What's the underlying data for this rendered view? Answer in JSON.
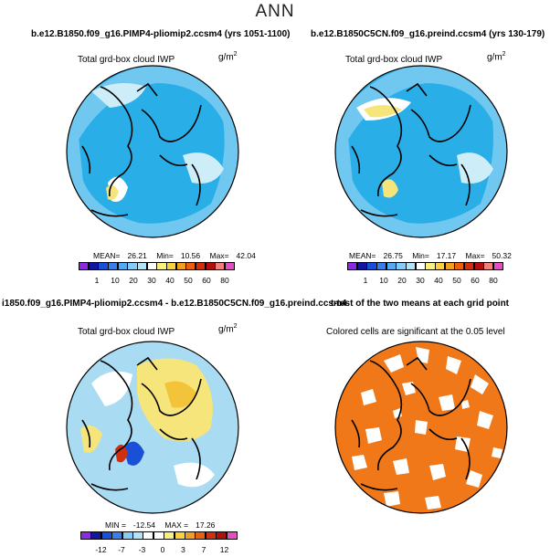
{
  "title": "ANN",
  "panels": [
    {
      "id": "p1",
      "title": "b.e12.B1850.f09_g16.PIMP4-pliomip2.ccsm4 (yrs 1051-1100)",
      "subtitle": "Total grd-box cloud IWP",
      "units": "g/m",
      "units_sup": "2",
      "stats": {
        "mean_label": "MEAN=",
        "mean": "26.21",
        "min_label": "Min=",
        "min": "10.56",
        "max_label": "Max=",
        "max": "42.04"
      },
      "colorbar": {
        "labels": [
          "1",
          "10",
          "20",
          "30",
          "40",
          "50",
          "60",
          "80"
        ],
        "colors": [
          "#8a2be2",
          "#1515a0",
          "#1a4fd8",
          "#3a7ee8",
          "#55aaf0",
          "#85cdf8",
          "#b0e4f8",
          "#ffffff",
          "#f8f080",
          "#f8d040",
          "#f0a020",
          "#e86010",
          "#d03010",
          "#b01010",
          "#f08080",
          "#e050c0"
        ]
      },
      "map_fill": "#29aee8",
      "map_accents": [
        "#8fd3f3",
        "#cdeef8",
        "#ffffff",
        "#f6e57a"
      ]
    },
    {
      "id": "p2",
      "title": "b.e12.B1850C5CN.f09_g16.preind.ccsm4 (yrs 130-179)",
      "subtitle": "Total grd-box cloud IWP",
      "units": "g/m",
      "units_sup": "2",
      "stats": {
        "mean_label": "MEAN=",
        "mean": "26.75",
        "min_label": "Min=",
        "min": "17.17",
        "max_label": "Max=",
        "max": "50.32"
      },
      "colorbar": {
        "labels": [
          "1",
          "10",
          "20",
          "30",
          "40",
          "50",
          "60",
          "80"
        ],
        "colors": [
          "#8a2be2",
          "#1515a0",
          "#1a4fd8",
          "#3a7ee8",
          "#55aaf0",
          "#85cdf8",
          "#b0e4f8",
          "#ffffff",
          "#f8f080",
          "#f8d040",
          "#f0a020",
          "#e86010",
          "#d03010",
          "#b01010",
          "#f08080",
          "#e050c0"
        ]
      },
      "map_fill": "#29aee8",
      "map_accents": [
        "#8fd3f3",
        "#cdeef8",
        "#ffffff",
        "#f6e57a"
      ]
    },
    {
      "id": "p3",
      "title": "i1850.f09_g16.PIMP4-pliomip2.ccsm4 - b.e12.B1850C5CN.f09_g16.preind.ccsm4",
      "subtitle": "Total grd-box cloud IWP",
      "units": "g/m",
      "units_sup": "2",
      "stats": {
        "min_label": "MIN =",
        "min": "-12.54",
        "max_label": "MAX =",
        "max": "17.26"
      },
      "colorbar": {
        "labels": [
          "-12",
          "-7",
          "-3",
          "0",
          "3",
          "7",
          "12"
        ],
        "colors": [
          "#8a2be2",
          "#1515a0",
          "#1a4fd8",
          "#3a7ee8",
          "#85cdf8",
          "#b0e4f8",
          "#ffffff",
          "#ffffff",
          "#f8f080",
          "#f8d040",
          "#f0a020",
          "#e86010",
          "#d03010",
          "#b01010",
          "#e050c0"
        ]
      },
      "map_fill": "#a9dcf3",
      "map_accents": [
        "#f6e57a",
        "#f3c43a",
        "#ffffff",
        "#1a4fd8"
      ]
    },
    {
      "id": "p4",
      "title": "t-test of the two means at each grid point",
      "subtitle": "Colored cells are significant at the 0.05 level",
      "map_fill": "#f07818",
      "map_accents": [
        "#ffffff"
      ]
    }
  ]
}
